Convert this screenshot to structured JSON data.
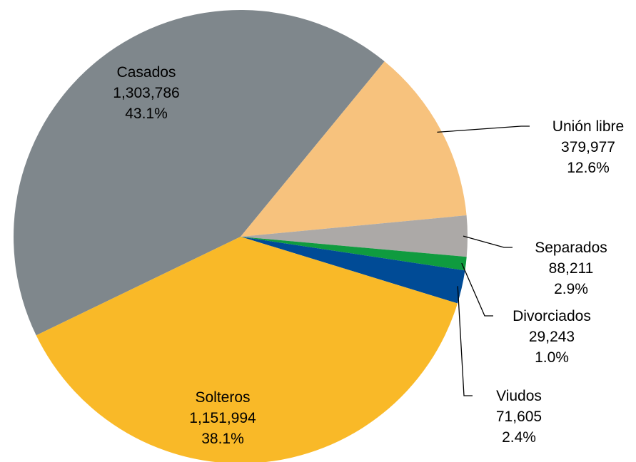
{
  "chart_data": {
    "type": "pie",
    "title": "",
    "slices": [
      {
        "label": "Casados",
        "value_text": "1,303,786",
        "percent_text": "43.1%",
        "value": 1303786,
        "percent": 43.1,
        "color": "#7f878c"
      },
      {
        "label": "Unión libre",
        "value_text": "379,977",
        "percent_text": "12.6%",
        "value": 379977,
        "percent": 12.6,
        "color": "#f7c27d"
      },
      {
        "label": "Separados",
        "value_text": "88,211",
        "percent_text": "2.9%",
        "value": 88211,
        "percent": 2.9,
        "color": "#aca9a7"
      },
      {
        "label": "Divorciados",
        "value_text": "29,243",
        "percent_text": "1.0%",
        "value": 29243,
        "percent": 1.0,
        "color": "#0f9b3f"
      },
      {
        "label": "Viudos",
        "value_text": "71,605",
        "percent_text": "2.4%",
        "value": 71605,
        "percent": 2.4,
        "color": "#004b96"
      },
      {
        "label": "Solteros",
        "value_text": "1,151,994",
        "percent_text": "38.1%",
        "value": 1151994,
        "percent": 38.1,
        "color": "#f9b928"
      }
    ]
  }
}
